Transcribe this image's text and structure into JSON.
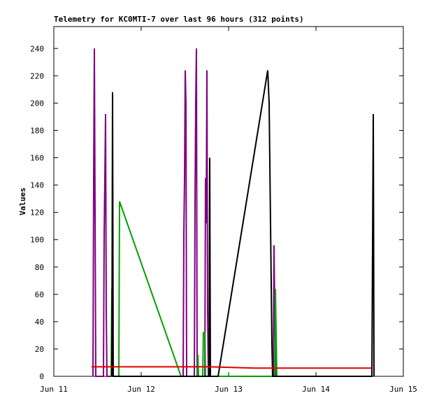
{
  "chart_data": {
    "type": "line",
    "title": "Telemetry for KC0MTI-7 over last 96 hours (312 points)",
    "y_label": "Values",
    "xlim": [
      11,
      15
    ],
    "xticks": [
      {
        "value": 11,
        "label": "Jun 11"
      },
      {
        "value": 12,
        "label": "Jun 12"
      },
      {
        "value": 13,
        "label": "Jun 13"
      },
      {
        "value": 14,
        "label": "Jun 14"
      },
      {
        "value": 15,
        "label": "Jun 15"
      }
    ],
    "ylim": [
      0,
      256
    ],
    "yticks": [
      0,
      20,
      40,
      60,
      80,
      100,
      120,
      140,
      160,
      180,
      200,
      220,
      240
    ],
    "series": [
      {
        "color": "#800080",
        "x": [
          11.448,
          11.456,
          11.464,
          11.472,
          11.48,
          11.568,
          11.576,
          11.584,
          11.592,
          11.6,
          11.608,
          12.48,
          12.488,
          12.496,
          12.504,
          12.512,
          12.52,
          12.608,
          12.616,
          12.624,
          12.632,
          12.64,
          12.728,
          12.736,
          12.744,
          12.752,
          12.76,
          12.768,
          13.512,
          13.52,
          13.528,
          13.536
        ],
        "values": [
          0,
          145,
          240,
          120,
          0,
          0,
          104,
          145,
          192,
          48,
          0,
          0,
          104,
          145,
          224,
          200,
          0,
          0,
          128,
          200,
          240,
          0,
          0,
          145,
          112,
          224,
          48,
          0,
          0,
          96,
          48,
          0
        ]
      },
      {
        "color": "#00a000",
        "x": [
          11.656,
          11.664,
          11.672,
          11.744,
          11.752,
          12.456,
          12.64,
          12.648,
          12.656,
          12.704,
          12.712,
          12.728,
          12.736,
          13.528,
          13.536,
          13.544,
          13.552
        ],
        "values": [
          0,
          64,
          0,
          0,
          128,
          0,
          0,
          16,
          0,
          0,
          32,
          32,
          0,
          0,
          64,
          32,
          0
        ]
      },
      {
        "color": "#000000",
        "x": [
          11.664,
          11.672,
          11.68,
          12.776,
          12.784,
          12.792,
          12.88,
          13.448,
          13.464,
          13.48,
          13.496,
          13.504,
          14.64,
          14.648,
          14.656,
          14.664
        ],
        "values": [
          0,
          208,
          0,
          0,
          160,
          0,
          0,
          224,
          200,
          112,
          24,
          0,
          0,
          96,
          192,
          0
        ]
      },
      {
        "color": "#e00000",
        "x": [
          11.432,
          12.784,
          13.024,
          13.304,
          14.632
        ],
        "values": [
          7,
          7,
          6.5,
          6,
          6
        ]
      }
    ]
  }
}
